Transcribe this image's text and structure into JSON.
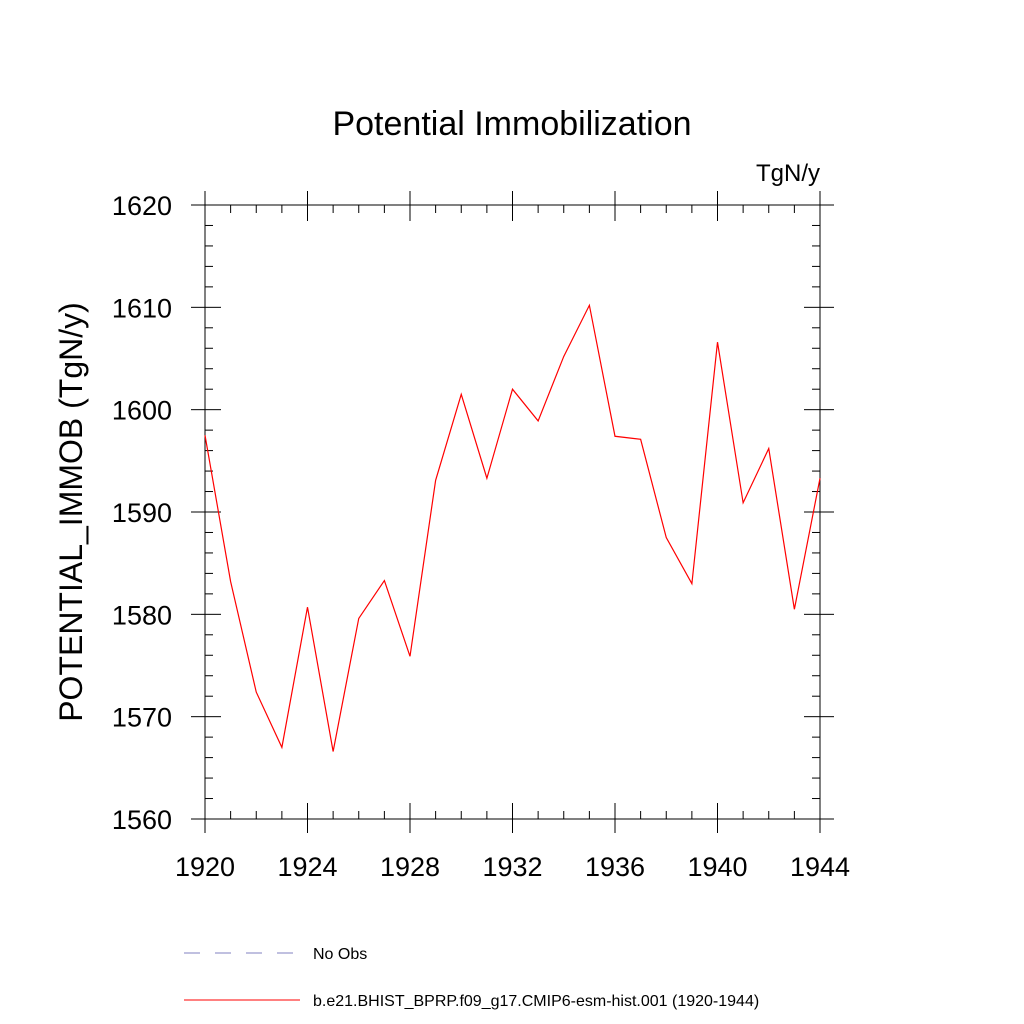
{
  "chart_data": {
    "type": "line",
    "title": "Potential Immobilization",
    "units": "TgN/y",
    "xlabel": "",
    "ylabel": "POTENTIAL_IMMOB  (TgN/y)",
    "xlim": [
      1920,
      1944
    ],
    "ylim": [
      1560,
      1620
    ],
    "xticks": [
      1920,
      1924,
      1928,
      1932,
      1936,
      1940,
      1944
    ],
    "yticks": [
      1560,
      1570,
      1580,
      1590,
      1600,
      1610,
      1620
    ],
    "x": [
      1920,
      1921,
      1922,
      1923,
      1924,
      1925,
      1926,
      1927,
      1928,
      1929,
      1930,
      1931,
      1932,
      1933,
      1934,
      1935,
      1936,
      1937,
      1938,
      1939,
      1940,
      1941,
      1942,
      1943,
      1944
    ],
    "series": [
      {
        "name": "b.e21.BHIST_BPRP.f09_g17.CMIP6-esm-hist.001 (1920-1944)",
        "color": "#ff0000",
        "style": "solid",
        "values": [
          1597.5,
          1583.2,
          1572.4,
          1567.0,
          1580.7,
          1566.6,
          1579.6,
          1583.3,
          1575.9,
          1593.1,
          1601.5,
          1593.3,
          1602.0,
          1598.9,
          1605.2,
          1610.2,
          1597.4,
          1597.1,
          1587.5,
          1583.0,
          1606.6,
          1590.9,
          1596.2,
          1580.5,
          1593.3
        ]
      }
    ],
    "legend": [
      {
        "label": "No Obs",
        "color": "#8080c0",
        "style": "dashed"
      },
      {
        "label": "b.e21.BHIST_BPRP.f09_g17.CMIP6-esm-hist.001 (1920-1944)",
        "color": "#ff0000",
        "style": "solid"
      }
    ],
    "legend_position": "bottom"
  }
}
